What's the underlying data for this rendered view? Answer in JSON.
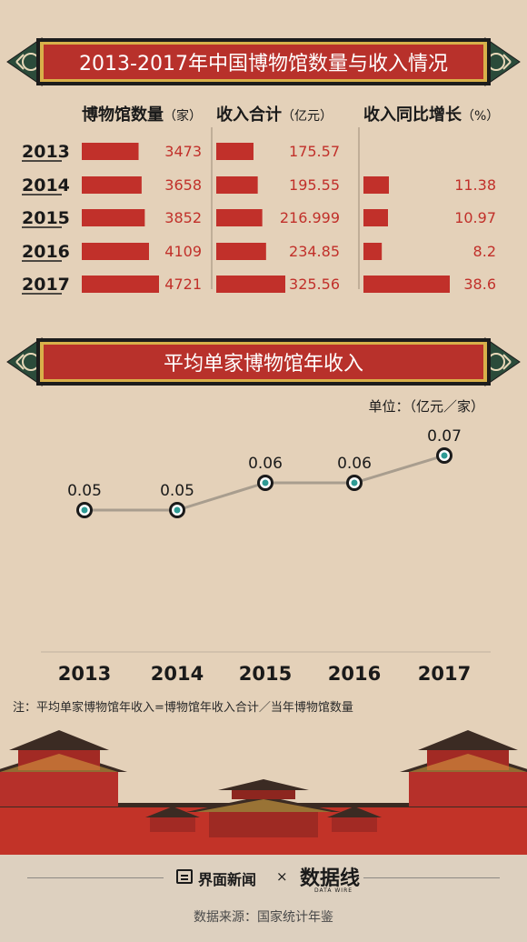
{
  "title": "2013-2017年中国博物馆数量与收入情况",
  "section2_title": "平均单家博物馆年收入",
  "unit_label": "单位：（亿元／家）",
  "note": "注：平均单家博物馆年收入=博物馆年收入合计／当年博物馆数量",
  "footer": {
    "brand1": "界面新闻",
    "times": "×",
    "brand2": "数据线",
    "brand2_sub": "DATA WIRE",
    "source": "数据来源：国家统计年鉴"
  },
  "watermark": "数据线",
  "colors": {
    "bar": "#c1302a",
    "banner": "#b8312b",
    "line": "#a89d8e",
    "marker_fill": "#2e9b95",
    "background": "#e4d1b9"
  },
  "chart_data": [
    {
      "type": "bar",
      "categories": [
        "2013",
        "2014",
        "2015",
        "2016",
        "2017"
      ],
      "series": [
        {
          "name": "博物馆数量",
          "unit": "（家）",
          "values": [
            3473,
            3658,
            3852,
            4109,
            4721
          ],
          "labels": [
            "3473",
            "3658",
            "3852",
            "4109",
            "4721"
          ]
        },
        {
          "name": "收入合计",
          "unit": "（亿元）",
          "values": [
            175.57,
            195.55,
            216.999,
            234.85,
            325.56
          ],
          "labels": [
            "175.57",
            "195.55",
            "216.999",
            "234.85",
            "325.56"
          ]
        },
        {
          "name": "收入同比增长",
          "unit": "（%）",
          "values": [
            null,
            11.38,
            10.97,
            8.2,
            38.6
          ],
          "labels": [
            "",
            "11.38",
            "10.97",
            "8.2",
            "38.6"
          ]
        }
      ]
    },
    {
      "type": "line",
      "x": [
        "2013",
        "2014",
        "2015",
        "2016",
        "2017"
      ],
      "values": [
        0.05,
        0.05,
        0.06,
        0.06,
        0.07
      ],
      "labels": [
        "0.05",
        "0.05",
        "0.06",
        "0.06",
        "0.07"
      ]
    }
  ]
}
